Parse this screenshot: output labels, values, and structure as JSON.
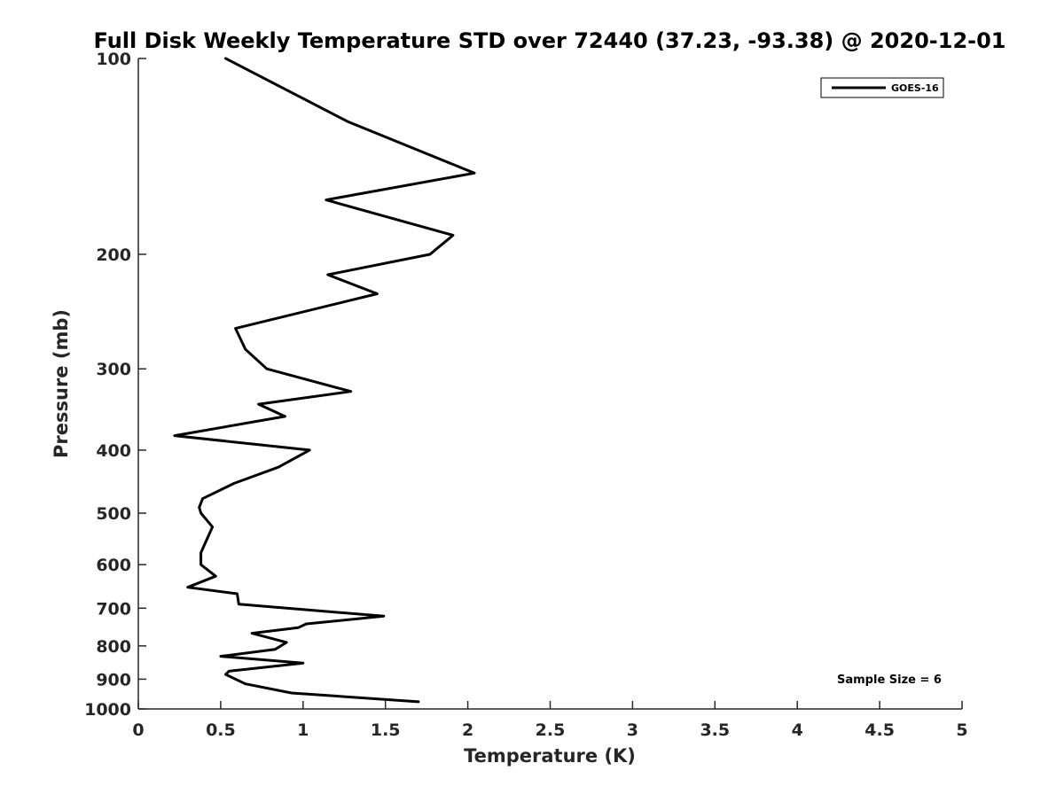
{
  "chart_data": {
    "type": "line",
    "title": "Full Disk Weekly Temperature STD over 72440 (37.23, -93.38) @ 2020-12-01",
    "xlabel": "Temperature (K)",
    "ylabel": "Pressure (mb)",
    "xlim": [
      0,
      5
    ],
    "ylim": [
      100,
      1000
    ],
    "y_scale": "log",
    "y_reversed": true,
    "grid": false,
    "legend_position": "top-right",
    "x_ticks": [
      "0",
      "0.5",
      "1",
      "1.5",
      "2",
      "2.5",
      "3",
      "3.5",
      "4",
      "4.5",
      "5"
    ],
    "y_ticks": [
      "100",
      "200",
      "300",
      "400",
      "500",
      "600",
      "700",
      "800",
      "900",
      "1000"
    ],
    "series": [
      {
        "name": "GOES-16",
        "color": "#000000",
        "points": [
          [
            0.53,
            100
          ],
          [
            1.27,
            125
          ],
          [
            2.04,
            150
          ],
          [
            1.14,
            165
          ],
          [
            1.91,
            187
          ],
          [
            1.77,
            200
          ],
          [
            1.15,
            215
          ],
          [
            1.45,
            230
          ],
          [
            0.59,
            260
          ],
          [
            0.65,
            280
          ],
          [
            0.78,
            300
          ],
          [
            1.29,
            325
          ],
          [
            0.73,
            340
          ],
          [
            0.89,
            355
          ],
          [
            0.22,
            380
          ],
          [
            1.04,
            400
          ],
          [
            0.85,
            425
          ],
          [
            0.58,
            450
          ],
          [
            0.39,
            475
          ],
          [
            0.37,
            490
          ],
          [
            0.38,
            500
          ],
          [
            0.45,
            525
          ],
          [
            0.38,
            575
          ],
          [
            0.38,
            600
          ],
          [
            0.47,
            625
          ],
          [
            0.3,
            650
          ],
          [
            0.6,
            665
          ],
          [
            0.61,
            690
          ],
          [
            1.49,
            720
          ],
          [
            1.02,
            740
          ],
          [
            0.97,
            750
          ],
          [
            0.69,
            765
          ],
          [
            0.9,
            790
          ],
          [
            0.83,
            810
          ],
          [
            0.5,
            830
          ],
          [
            1.0,
            850
          ],
          [
            0.55,
            875
          ],
          [
            0.53,
            885
          ],
          [
            0.65,
            915
          ],
          [
            0.93,
            945
          ],
          [
            1.7,
            975
          ]
        ]
      }
    ],
    "annotations": [
      "Sample Size = 6"
    ]
  }
}
